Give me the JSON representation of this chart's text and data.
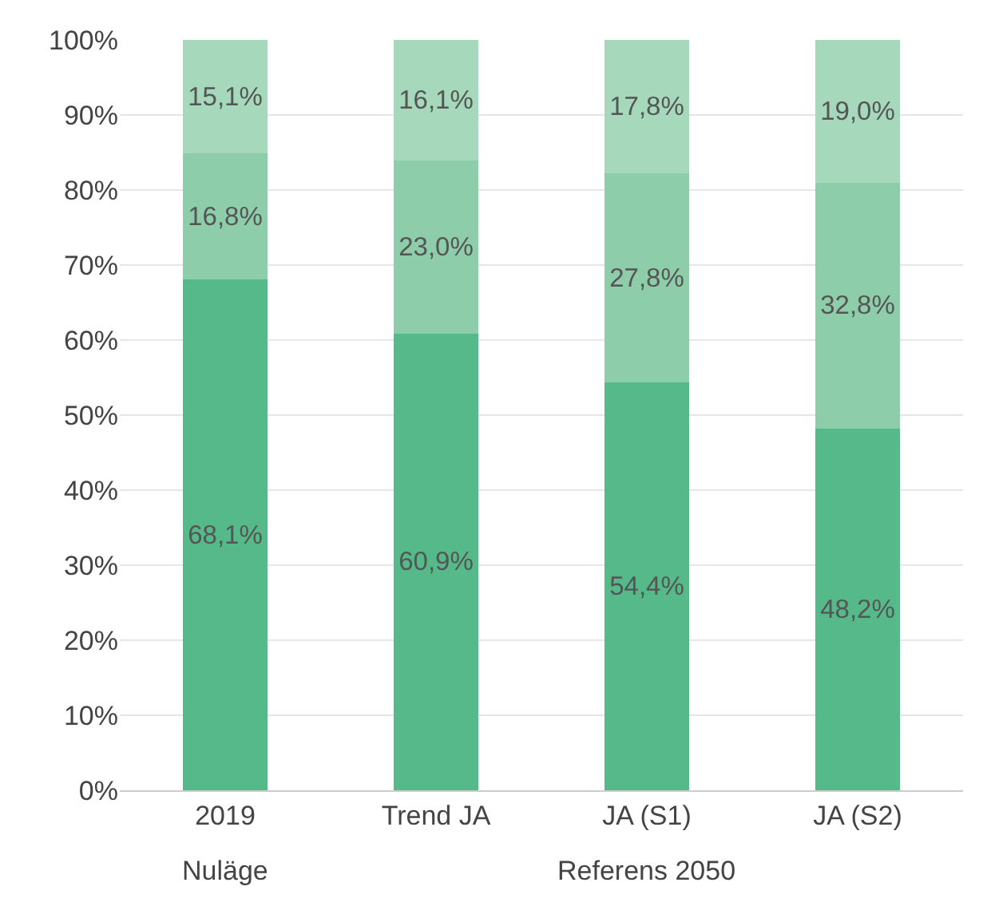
{
  "chart_data": {
    "type": "bar",
    "stacked": true,
    "categories": [
      "2019",
      "Trend JA",
      "JA (S1)",
      "JA (S2)"
    ],
    "series": [
      {
        "color": "#55b98a",
        "values": [
          68.1,
          60.9,
          54.4,
          48.2
        ],
        "value_labels": [
          "68,1%",
          "60,9%",
          "54,4%",
          "48,2%"
        ]
      },
      {
        "color": "#8ecdaa",
        "values": [
          16.8,
          23.0,
          27.8,
          32.8
        ],
        "value_labels": [
          "16,8%",
          "23,0%",
          "27,8%",
          "32,8%"
        ]
      },
      {
        "color": "#a6d9bb",
        "values": [
          15.1,
          16.1,
          17.8,
          19.0
        ],
        "value_labels": [
          "15,1%",
          "16,1%",
          "17,8%",
          "19,0%"
        ]
      }
    ],
    "ylim": [
      0,
      100
    ],
    "yticks": [
      {
        "value": 0,
        "label": "0%"
      },
      {
        "value": 10,
        "label": "10%"
      },
      {
        "value": 20,
        "label": "20%"
      },
      {
        "value": 30,
        "label": "30%"
      },
      {
        "value": 40,
        "label": "40%"
      },
      {
        "value": 50,
        "label": "50%"
      },
      {
        "value": 60,
        "label": "60%"
      },
      {
        "value": 70,
        "label": "70%"
      },
      {
        "value": 80,
        "label": "80%"
      },
      {
        "value": 90,
        "label": "90%"
      },
      {
        "value": 100,
        "label": "100%"
      }
    ],
    "grid": "y",
    "legend": false,
    "annotations": [
      "Nuläge",
      "Referens 2050"
    ]
  }
}
